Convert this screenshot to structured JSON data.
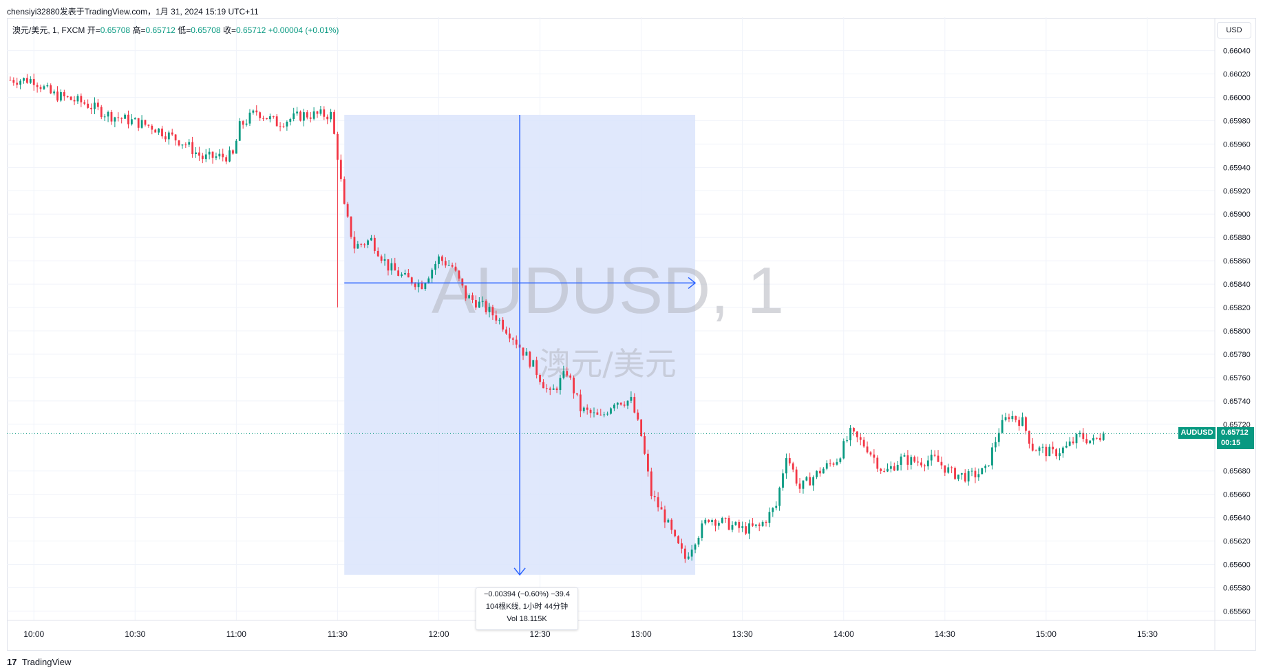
{
  "header": {
    "publisher": "chensiyi32880发表于TradingView.com，1月 31, 2024 15:19 UTC+11"
  },
  "legend": {
    "symbol": "澳元/美元, 1, FXCM",
    "open_label": "开=",
    "open": "0.65708",
    "high_label": "高=",
    "high": "0.65712",
    "low_label": "低=",
    "low": "0.65708",
    "close_label": "收=",
    "close": "0.65712",
    "change": "+0.00004 (+0.01%)"
  },
  "currency": "USD",
  "watermark": {
    "line1": "AUDUSD, 1",
    "line2": "澳元/美元"
  },
  "price_tag": {
    "symbol": "AUDUSD",
    "price": "0.65712",
    "countdown": "00:15"
  },
  "measurement": {
    "line1": "−0.00394 (−0.60%) −39.4",
    "line2": "104根K线, 1小时 44分钟",
    "line3": "Vol 18.115K",
    "start_time": "11:32",
    "end_time": "13:16",
    "start_price": 0.65985,
    "end_price": 0.65591
  },
  "footer": {
    "logo": "17",
    "brand": "TradingView"
  },
  "colors": {
    "up": "#089981",
    "down": "#f23645",
    "measure": "#2962ff",
    "measure_fill": "#dbe4fc",
    "grid": "#f0f3fa"
  },
  "chart_data": {
    "type": "candlestick",
    "title": "",
    "symbol": "AUDUSD",
    "interval": "1",
    "x_ticks": [
      "10:00",
      "10:30",
      "11:00",
      "11:30",
      "12:00",
      "12:30",
      "13:00",
      "13:30",
      "14:00",
      "14:30",
      "15:00",
      "15:30"
    ],
    "y_ticks": [
      "0.66040",
      "0.66020",
      "0.66000",
      "0.65980",
      "0.65960",
      "0.65940",
      "0.65920",
      "0.65900",
      "0.65880",
      "0.65860",
      "0.65840",
      "0.65820",
      "0.65800",
      "0.65780",
      "0.65760",
      "0.65740",
      "0.65720",
      "0.65680",
      "0.65660",
      "0.65640",
      "0.65620",
      "0.65600",
      "0.65580",
      "0.65560"
    ],
    "ylim": [
      0.65552,
      0.66048
    ],
    "xlim": [
      "09:52",
      "15:50"
    ],
    "last_price": 0.65712,
    "grid": true,
    "closes_keypoints": [
      [
        "09:53",
        0.66015
      ],
      [
        "10:00",
        0.66015
      ],
      [
        "10:05",
        0.66003
      ],
      [
        "10:15",
        0.65995
      ],
      [
        "10:22",
        0.65985
      ],
      [
        "10:35",
        0.65975
      ],
      [
        "10:45",
        0.6596
      ],
      [
        "10:50",
        0.65948
      ],
      [
        "10:59",
        0.6595
      ],
      [
        "11:01",
        0.65975
      ],
      [
        "11:06",
        0.65988
      ],
      [
        "11:12",
        0.65978
      ],
      [
        "11:20",
        0.65985
      ],
      [
        "11:28",
        0.65985
      ],
      [
        "11:30",
        0.6595
      ],
      [
        "11:32",
        0.65905
      ],
      [
        "11:35",
        0.65872
      ],
      [
        "11:40",
        0.65878
      ],
      [
        "11:45",
        0.65855
      ],
      [
        "11:50",
        0.65845
      ],
      [
        "11:55",
        0.6584
      ],
      [
        "12:00",
        0.65862
      ],
      [
        "12:04",
        0.65855
      ],
      [
        "12:08",
        0.6583
      ],
      [
        "12:12",
        0.65823
      ],
      [
        "12:17",
        0.65812
      ],
      [
        "12:22",
        0.65795
      ],
      [
        "12:28",
        0.6577
      ],
      [
        "12:33",
        0.65745
      ],
      [
        "12:38",
        0.65765
      ],
      [
        "12:42",
        0.65733
      ],
      [
        "12:48",
        0.65725
      ],
      [
        "12:52",
        0.6574
      ],
      [
        "12:57",
        0.6574
      ],
      [
        "13:00",
        0.6571
      ],
      [
        "13:03",
        0.6566
      ],
      [
        "13:07",
        0.6564
      ],
      [
        "13:10",
        0.6562
      ],
      [
        "13:13",
        0.65605
      ],
      [
        "13:16",
        0.65622
      ],
      [
        "13:20",
        0.6564
      ],
      [
        "13:25",
        0.65635
      ],
      [
        "13:30",
        0.6563
      ],
      [
        "13:35",
        0.65632
      ],
      [
        "13:40",
        0.6565
      ],
      [
        "13:43",
        0.65695
      ],
      [
        "13:47",
        0.65665
      ],
      [
        "13:53",
        0.6568
      ],
      [
        "13:58",
        0.6569
      ],
      [
        "14:02",
        0.65712
      ],
      [
        "14:07",
        0.657
      ],
      [
        "14:12",
        0.65678
      ],
      [
        "14:17",
        0.6569
      ],
      [
        "14:22",
        0.65688
      ],
      [
        "14:27",
        0.6569
      ],
      [
        "14:32",
        0.65678
      ],
      [
        "14:37",
        0.65675
      ],
      [
        "14:42",
        0.6568
      ],
      [
        "14:46",
        0.65715
      ],
      [
        "14:49",
        0.65728
      ],
      [
        "14:53",
        0.65722
      ],
      [
        "14:56",
        0.657
      ],
      [
        "15:02",
        0.65695
      ],
      [
        "15:06",
        0.657
      ],
      [
        "15:10",
        0.6571
      ],
      [
        "15:14",
        0.65705
      ],
      [
        "15:17",
        0.65712
      ]
    ]
  }
}
